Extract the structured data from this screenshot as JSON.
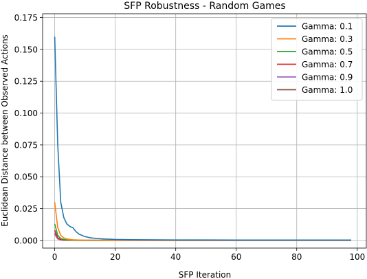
{
  "chart_data": {
    "type": "line",
    "title": "SFP Robustness - Random Games",
    "xlabel": "SFP Iteration",
    "ylabel": "Euclidean Distance between Observed Actions",
    "xlim": [
      -4,
      103
    ],
    "ylim": [
      -0.006,
      0.178
    ],
    "xticks": [
      0,
      20,
      40,
      60,
      80,
      100
    ],
    "yticks": [
      0.0,
      0.025,
      0.05,
      0.075,
      0.1,
      0.125,
      0.15,
      0.175
    ],
    "ytick_labels": [
      "0.000",
      "0.025",
      "0.050",
      "0.075",
      "0.100",
      "0.125",
      "0.150",
      "0.175"
    ],
    "grid": true,
    "legend_position": "top-right",
    "series": [
      {
        "name": "Gamma: 0.1",
        "color": "#1f77b4",
        "x": [
          0,
          1,
          2,
          3,
          4,
          5,
          6,
          7,
          8,
          9,
          10,
          12,
          14,
          16,
          18,
          20,
          25,
          30,
          40,
          50,
          60,
          70,
          80,
          90,
          98
        ],
        "y": [
          0.16,
          0.075,
          0.03,
          0.018,
          0.013,
          0.011,
          0.01,
          0.007,
          0.005,
          0.004,
          0.003,
          0.002,
          0.0015,
          0.0012,
          0.001,
          0.0008,
          0.0006,
          0.0005,
          0.0004,
          0.0004,
          0.0003,
          0.0003,
          0.0003,
          0.0003,
          0.0003
        ]
      },
      {
        "name": "Gamma: 0.3",
        "color": "#ff7f0e",
        "x": [
          0,
          1,
          2,
          3,
          4,
          5,
          6,
          8,
          10,
          15,
          20,
          40,
          60,
          80,
          98
        ],
        "y": [
          0.03,
          0.01,
          0.004,
          0.002,
          0.0012,
          0.0008,
          0.0005,
          0.0003,
          0.0002,
          0.0002,
          0.0001,
          0.0001,
          0.0001,
          0.0001,
          0.0001
        ]
      },
      {
        "name": "Gamma: 0.5",
        "color": "#2ca02c",
        "x": [
          0,
          1,
          2,
          3,
          4,
          6,
          10,
          20,
          40,
          60,
          80,
          98
        ],
        "y": [
          0.013,
          0.004,
          0.0015,
          0.0008,
          0.0004,
          0.0002,
          0.0001,
          0.0001,
          0.0001,
          0.0001,
          0.0001,
          0.0001
        ]
      },
      {
        "name": "Gamma: 0.7",
        "color": "#d62728",
        "x": [
          0,
          1,
          2,
          3,
          5,
          10,
          20,
          40,
          60,
          80,
          98
        ],
        "y": [
          0.008,
          0.002,
          0.0008,
          0.0003,
          0.0001,
          0.0001,
          0.0001,
          0.0,
          0.0,
          0.0,
          0.0
        ]
      },
      {
        "name": "Gamma: 0.9",
        "color": "#9467bd",
        "x": [
          0,
          1,
          2,
          3,
          5,
          10,
          20,
          40,
          60,
          80,
          98
        ],
        "y": [
          0.006,
          0.0015,
          0.0005,
          0.0002,
          0.0001,
          0.0,
          0.0,
          0.0,
          0.0,
          0.0,
          0.0
        ]
      },
      {
        "name": "Gamma: 1.0",
        "color": "#8c564b",
        "x": [
          0,
          1,
          2,
          3,
          5,
          10,
          20,
          40,
          60,
          80,
          98
        ],
        "y": [
          0.005,
          0.0012,
          0.0004,
          0.0002,
          0.0001,
          0.0,
          0.0,
          0.0,
          0.0,
          0.0,
          0.0
        ]
      }
    ]
  }
}
